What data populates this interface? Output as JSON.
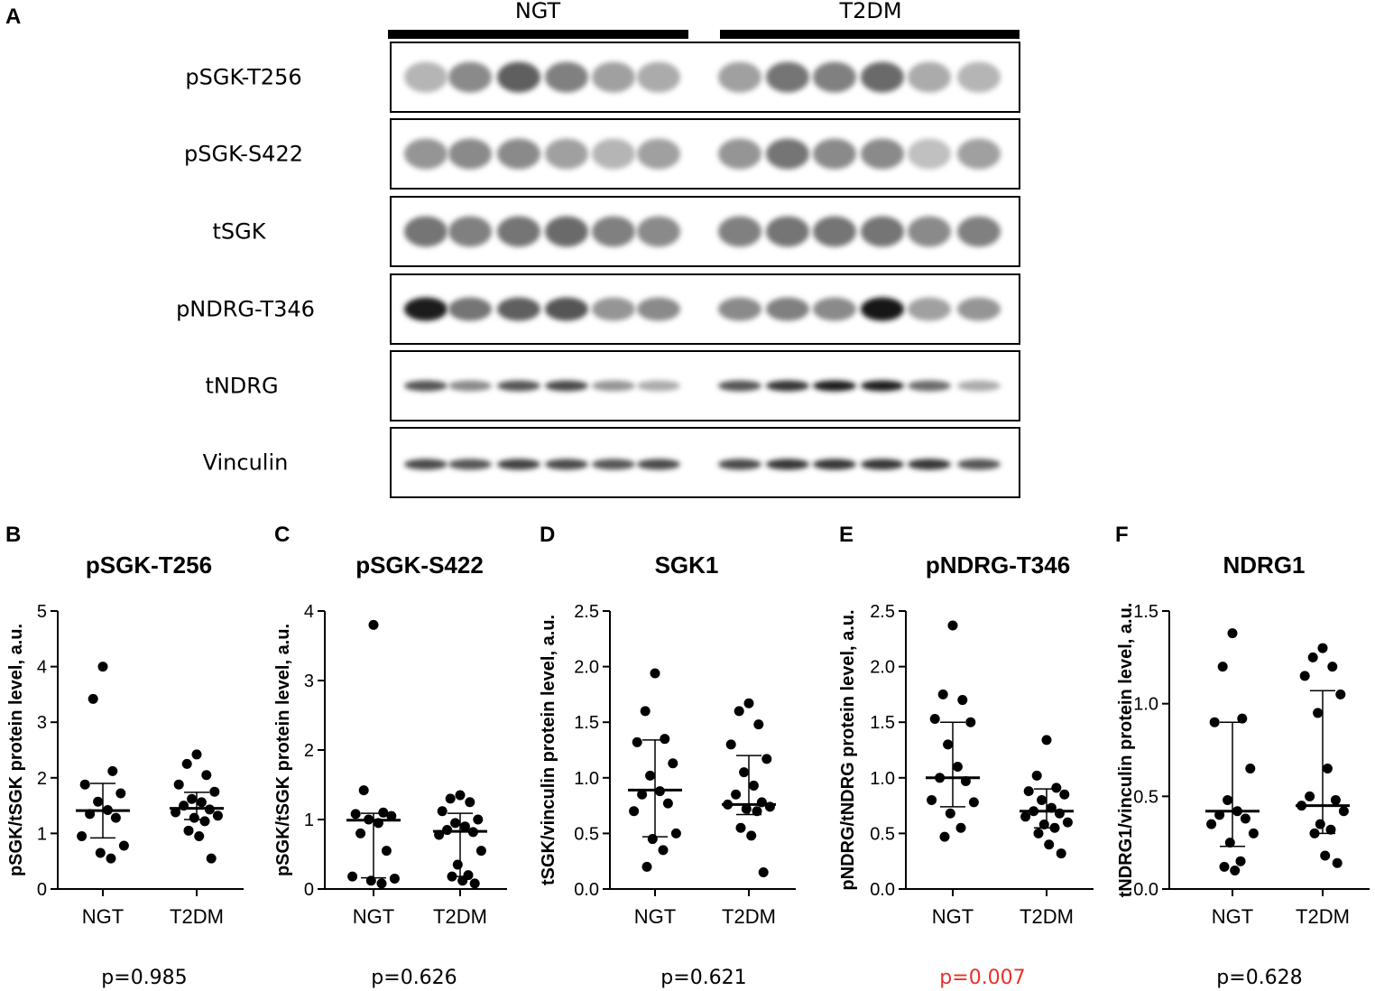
{
  "panel_a": {
    "letter": "A",
    "groups": [
      "NGT",
      "T2DM"
    ],
    "blot_rows": [
      "pSGK-T256",
      "pSGK-S422",
      "tSGK",
      "pNDRG-T346",
      "tNDRG",
      "Vinculin"
    ],
    "band_intensity": [
      [
        0.25,
        0.45,
        0.65,
        0.5,
        0.35,
        0.3,
        0.35,
        0.55,
        0.5,
        0.6,
        0.3,
        0.25
      ],
      [
        0.4,
        0.45,
        0.45,
        0.35,
        0.25,
        0.35,
        0.4,
        0.55,
        0.45,
        0.45,
        0.2,
        0.35
      ],
      [
        0.55,
        0.5,
        0.55,
        0.6,
        0.5,
        0.45,
        0.5,
        0.55,
        0.55,
        0.55,
        0.45,
        0.5
      ],
      [
        0.95,
        0.55,
        0.65,
        0.7,
        0.4,
        0.45,
        0.45,
        0.5,
        0.45,
        1.0,
        0.35,
        0.4
      ],
      [
        0.7,
        0.45,
        0.7,
        0.75,
        0.4,
        0.3,
        0.7,
        0.85,
        0.95,
        0.95,
        0.6,
        0.3
      ],
      [
        0.75,
        0.7,
        0.8,
        0.75,
        0.7,
        0.75,
        0.75,
        0.85,
        0.85,
        0.85,
        0.85,
        0.7
      ]
    ]
  },
  "colors": {
    "highlight_pvalue": "#e8302a",
    "ink": "#000000"
  },
  "chart_data": [
    {
      "letter": "B",
      "type": "scatter",
      "title": "pSGK-T256",
      "ylabel": "pSGK/tSGK protein level, a.u.",
      "categories": [
        "NGT",
        "T2DM"
      ],
      "ylim": [
        0,
        5
      ],
      "yticks": [
        "0",
        "1",
        "2",
        "3",
        "4",
        "5"
      ],
      "p_value": "p=0.985",
      "significant": false,
      "series": [
        {
          "name": "NGT",
          "values": [
            4.0,
            3.42,
            2.12,
            1.88,
            1.72,
            1.57,
            1.42,
            1.35,
            1.28,
            0.95,
            0.78,
            0.65,
            0.55
          ],
          "median": 1.41,
          "q1": 0.92,
          "q3": 1.9
        },
        {
          "name": "T2DM",
          "values": [
            2.42,
            2.25,
            2.05,
            1.88,
            1.75,
            1.62,
            1.56,
            1.5,
            1.43,
            1.38,
            1.32,
            1.28,
            1.22,
            1.05,
            0.95,
            0.55
          ],
          "median": 1.45,
          "q1": 1.25,
          "q3": 1.74
        }
      ]
    },
    {
      "letter": "C",
      "type": "scatter",
      "title": "pSGK-S422",
      "ylabel": "pSGK/tSGK protein level, a.u.",
      "categories": [
        "NGT",
        "T2DM"
      ],
      "ylim": [
        0,
        4
      ],
      "yticks": [
        "0",
        "1",
        "2",
        "3",
        "4"
      ],
      "p_value": "p=0.626",
      "significant": false,
      "series": [
        {
          "name": "NGT",
          "values": [
            3.8,
            1.42,
            1.1,
            1.08,
            1.05,
            1.0,
            0.95,
            0.8,
            0.55,
            0.18,
            0.15,
            0.12,
            0.08
          ],
          "median": 0.99,
          "q1": 0.16,
          "q3": 1.09
        },
        {
          "name": "T2DM",
          "values": [
            1.35,
            1.3,
            1.25,
            1.12,
            1.0,
            0.95,
            0.9,
            0.85,
            0.82,
            0.78,
            0.55,
            0.35,
            0.2,
            0.18,
            0.12,
            0.08
          ],
          "median": 0.83,
          "q1": 0.18,
          "q3": 1.09
        }
      ]
    },
    {
      "letter": "D",
      "type": "scatter",
      "title": "SGK1",
      "ylabel": "tSGK/vinculin protein level, a.u.",
      "categories": [
        "NGT",
        "T2DM"
      ],
      "ylim": [
        0,
        2.5
      ],
      "yticks": [
        "0.0",
        "0.5",
        "1.0",
        "1.5",
        "2.0",
        "2.5"
      ],
      "p_value": "p=0.621",
      "significant": false,
      "series": [
        {
          "name": "NGT",
          "values": [
            1.94,
            1.6,
            1.35,
            1.32,
            1.13,
            1.02,
            0.88,
            0.85,
            0.77,
            0.7,
            0.5,
            0.45,
            0.35,
            0.2
          ],
          "median": 0.89,
          "q1": 0.47,
          "q3": 1.34
        },
        {
          "name": "T2DM",
          "values": [
            1.67,
            1.6,
            1.48,
            1.3,
            1.17,
            1.05,
            0.93,
            0.85,
            0.78,
            0.76,
            0.74,
            0.72,
            0.7,
            0.55,
            0.48,
            0.15
          ],
          "median": 0.76,
          "q1": 0.67,
          "q3": 1.2
        }
      ]
    },
    {
      "letter": "E",
      "type": "scatter",
      "title": "pNDRG-T346",
      "ylabel": "pNDRG/tNDRG protein level, a.u.",
      "categories": [
        "NGT",
        "T2DM"
      ],
      "ylim": [
        0,
        2.5
      ],
      "yticks": [
        "0.0",
        "0.5",
        "1.0",
        "1.5",
        "2.0",
        "2.5"
      ],
      "p_value": "p=0.007",
      "significant": true,
      "series": [
        {
          "name": "NGT",
          "values": [
            2.37,
            1.75,
            1.7,
            1.53,
            1.5,
            1.3,
            1.1,
            1.0,
            0.97,
            0.8,
            0.78,
            0.68,
            0.55,
            0.47
          ],
          "median": 1.0,
          "q1": 0.74,
          "q3": 1.5
        },
        {
          "name": "T2DM",
          "values": [
            1.34,
            1.02,
            0.91,
            0.88,
            0.85,
            0.8,
            0.73,
            0.7,
            0.68,
            0.65,
            0.6,
            0.58,
            0.55,
            0.5,
            0.4,
            0.32
          ],
          "median": 0.7,
          "q1": 0.55,
          "q3": 0.9
        }
      ]
    },
    {
      "letter": "F",
      "type": "scatter",
      "title": "NDRG1",
      "ylabel": "tNDRG1/vinculin protein level, a.u.",
      "categories": [
        "NGT",
        "T2DM"
      ],
      "ylim": [
        0,
        1.5
      ],
      "yticks": [
        "0.0",
        "0.5",
        "1.0",
        "1.5"
      ],
      "p_value": "p=0.628",
      "significant": false,
      "series": [
        {
          "name": "NGT",
          "values": [
            1.38,
            1.2,
            0.92,
            0.9,
            0.65,
            0.48,
            0.42,
            0.4,
            0.38,
            0.35,
            0.3,
            0.25,
            0.15,
            0.12,
            0.1
          ],
          "median": 0.42,
          "q1": 0.23,
          "q3": 0.9
        },
        {
          "name": "T2DM",
          "values": [
            1.3,
            1.25,
            1.2,
            1.15,
            1.05,
            0.95,
            0.65,
            0.5,
            0.48,
            0.45,
            0.42,
            0.35,
            0.32,
            0.3,
            0.18,
            0.14
          ],
          "median": 0.45,
          "q1": 0.3,
          "q3": 1.07
        }
      ]
    }
  ]
}
